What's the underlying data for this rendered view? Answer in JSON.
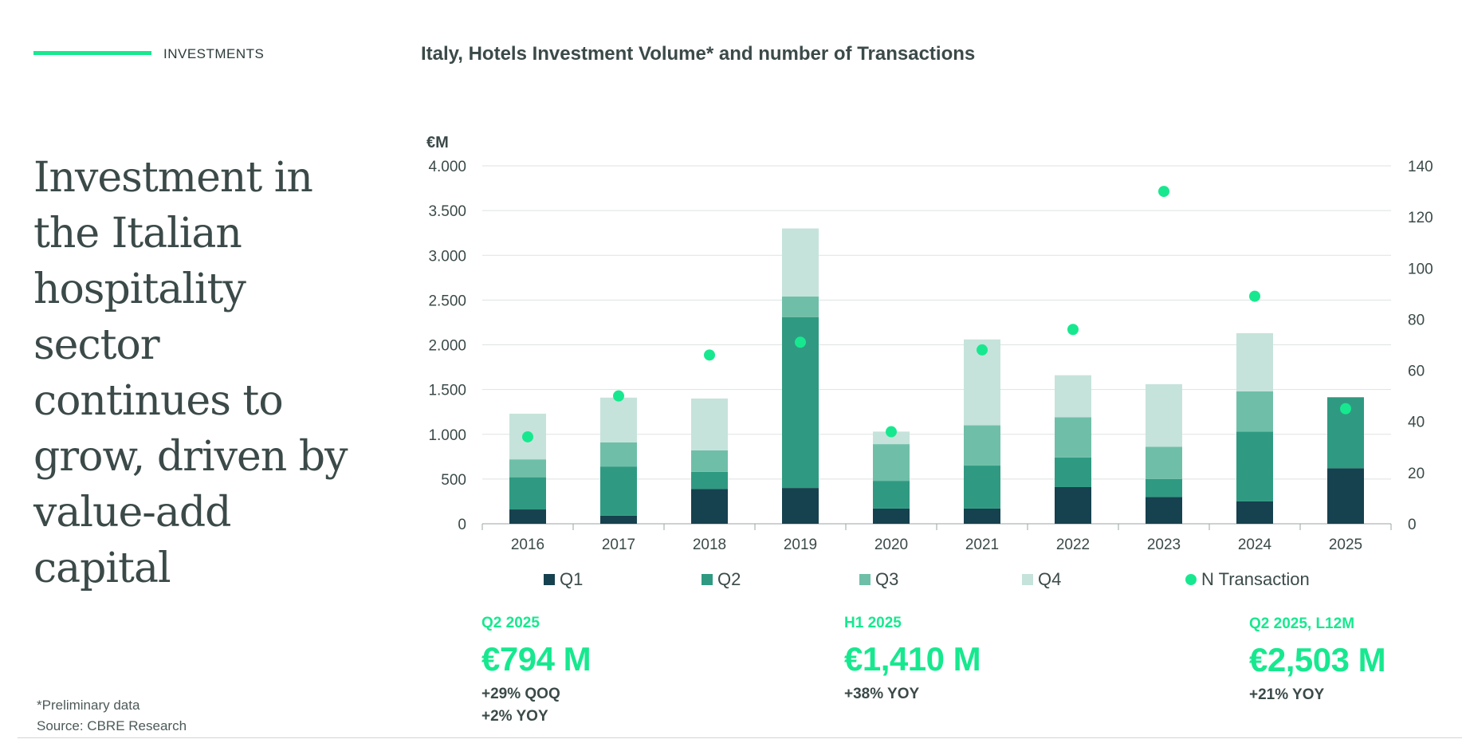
{
  "header": {
    "section": "INVESTMENTS",
    "title": "Italy, Hotels Investment Volume* and number of Transactions"
  },
  "headline": "Investment in the Italian hospitality sector continues to grow, driven by value-add capital",
  "footnote": {
    "line1": "*Preliminary data",
    "line2": "Source: CBRE Research"
  },
  "stats": [
    {
      "label": "Q2 2025",
      "value": "€794 M",
      "notes": [
        "+29% QOQ",
        "+2% YOY"
      ]
    },
    {
      "label": "H1 2025",
      "value": "€1,410 M",
      "notes": [
        "+38% YOY"
      ]
    },
    {
      "label": "Q2 2025, L12M",
      "value": "€2,503 M",
      "notes": [
        "+21% YOY"
      ]
    }
  ],
  "colors": {
    "accent": "#17e88f",
    "q1": "#16414f",
    "q2": "#2f9a81",
    "q3": "#6fbfa8",
    "q4": "#c5e3db",
    "dot": "#17e88f",
    "text": "#3b4a49"
  },
  "chart_data": {
    "type": "bar",
    "stacked": true,
    "title": "Italy, Hotels Investment Volume* and number of Transactions",
    "ylabel": "€M",
    "ylim": [
      0,
      4000
    ],
    "yticks": [
      0,
      500,
      1000,
      1500,
      2000,
      2500,
      3000,
      3500,
      4000
    ],
    "ytick_labels": [
      "0",
      "500",
      "1.000",
      "1.500",
      "2.000",
      "2.500",
      "3.000",
      "3.500",
      "4.000"
    ],
    "y2lim": [
      0,
      140
    ],
    "y2ticks": [
      0,
      20,
      40,
      60,
      80,
      100,
      120,
      140
    ],
    "y2tick_labels": [
      "0",
      "20",
      "40",
      "60",
      "80",
      "100",
      "120",
      "140"
    ],
    "categories": [
      "2016",
      "2017",
      "2018",
      "2019",
      "2020",
      "2021",
      "2022",
      "2023",
      "2024",
      "2025"
    ],
    "series": [
      {
        "name": "Q1",
        "key": "q1",
        "values": [
          160,
          90,
          390,
          400,
          170,
          170,
          410,
          300,
          250,
          620
        ]
      },
      {
        "name": "Q2",
        "key": "q2",
        "values": [
          360,
          550,
          190,
          1910,
          310,
          480,
          330,
          200,
          780,
          794
        ]
      },
      {
        "name": "Q3",
        "key": "q3",
        "values": [
          200,
          270,
          240,
          230,
          410,
          450,
          450,
          360,
          450,
          0
        ]
      },
      {
        "name": "Q4",
        "key": "q4",
        "values": [
          510,
          500,
          580,
          760,
          140,
          960,
          470,
          700,
          650,
          0
        ]
      }
    ],
    "line_series": {
      "name": "N Transaction",
      "axis": "right",
      "values": [
        34,
        50,
        66,
        71,
        36,
        68,
        76,
        130,
        89,
        45
      ]
    },
    "legend": [
      "Q1",
      "Q2",
      "Q3",
      "Q4",
      "N Transaction"
    ],
    "legend_position": "bottom",
    "grid": true
  }
}
